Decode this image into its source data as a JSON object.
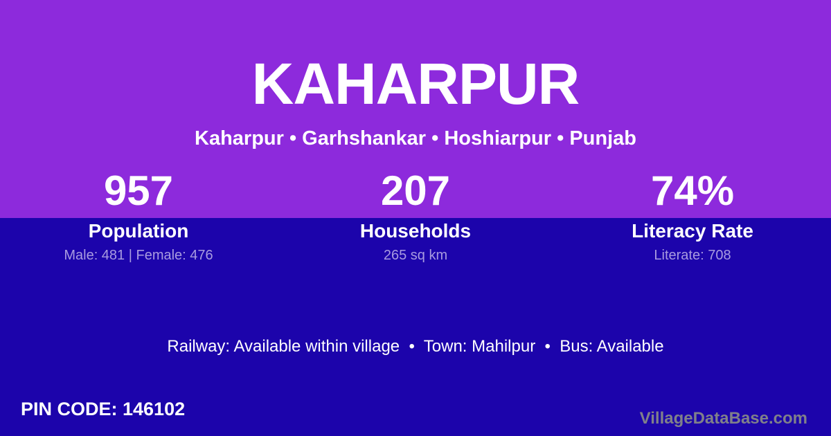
{
  "theme": {
    "purple": "#8D2ADC",
    "blue": "#1C04AB",
    "lavender": "#A89BE0",
    "watermark_gray": "#80808A"
  },
  "header": {
    "title": "KAHARPUR",
    "breadcrumb": "Kaharpur • Garhshankar • Hoshiarpur • Punjab"
  },
  "stats": [
    {
      "value": "957",
      "label": "Population",
      "detail": "Male: 481 | Female: 476"
    },
    {
      "value": "207",
      "label": "Households",
      "detail": "265 sq km"
    },
    {
      "value": "74%",
      "label": "Literacy Rate",
      "detail": "Literate: 708"
    }
  ],
  "amenities": "Railway: Available within village  •  Town: Mahilpur  •  Bus: Available",
  "footer": {
    "pin_code": "PIN CODE: 146102",
    "watermark": "VillageDataBase.com"
  }
}
